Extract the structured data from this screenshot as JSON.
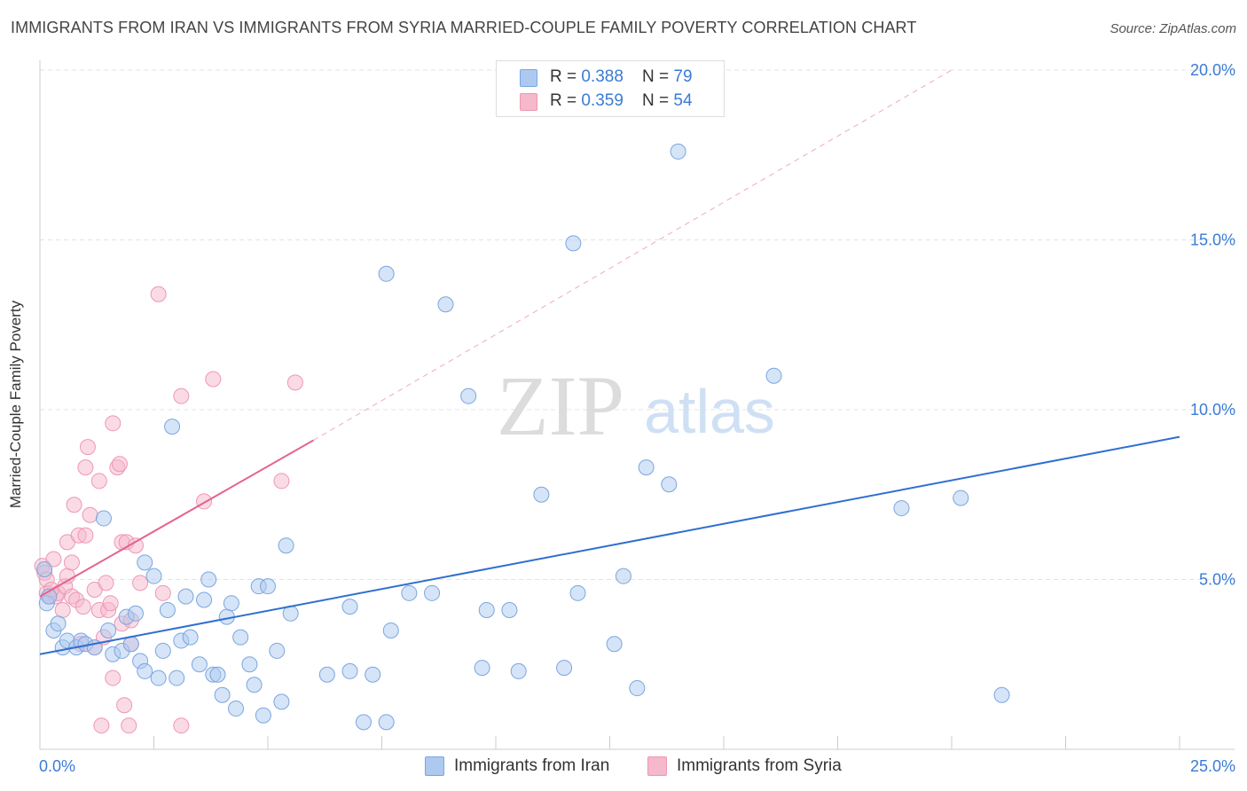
{
  "header": {
    "title": "IMMIGRANTS FROM IRAN VS IMMIGRANTS FROM SYRIA MARRIED-COUPLE FAMILY POVERTY CORRELATION CHART",
    "source": "Source: ZipAtlas.com"
  },
  "watermark": {
    "zip": "ZIP",
    "atlas": "atlas"
  },
  "legend": {
    "iran": {
      "r_label": "R = ",
      "r_value": "0.388",
      "n_label": "N = ",
      "n_value": "79"
    },
    "syria": {
      "r_label": "R = ",
      "r_value": "0.359",
      "n_label": "N = ",
      "n_value": "54"
    }
  },
  "colors": {
    "iran_fill": "#aec9f0",
    "iran_stroke": "#7aa6e0",
    "iran_line": "#2f6fd0",
    "syria_fill": "#f6b8cb",
    "syria_stroke": "#ee97b3",
    "syria_line": "#e4648f",
    "tick_label": "#3a7bd5",
    "grid": "#e3e3e3"
  },
  "chart_data": {
    "type": "scatter",
    "title": "IMMIGRANTS FROM IRAN VS IMMIGRANTS FROM SYRIA MARRIED-COUPLE FAMILY POVERTY CORRELATION CHART",
    "xlabel": "",
    "ylabel": "Married-Couple Family Poverty",
    "xlim": [
      0,
      25
    ],
    "ylim": [
      0,
      20
    ],
    "x_ticks": [
      0,
      2.5,
      5,
      7.5,
      10,
      12.5,
      15,
      17.5,
      20,
      22.5,
      25
    ],
    "x_tick_labels": [
      "0.0%",
      "25.0%"
    ],
    "y_ticks": [
      5,
      10,
      15,
      20
    ],
    "y_tick_labels": [
      "5.0%",
      "10.0%",
      "15.0%",
      "20.0%"
    ],
    "legend_position": "top-center",
    "series": [
      {
        "name": "Immigrants from Iran",
        "R": 0.388,
        "N": 79,
        "trend": {
          "x0": 0,
          "y0": 2.8,
          "x1": 25,
          "y1": 9.2
        },
        "points": [
          [
            0.1,
            5.3
          ],
          [
            0.15,
            4.3
          ],
          [
            0.3,
            3.5
          ],
          [
            0.4,
            3.7
          ],
          [
            0.5,
            3.0
          ],
          [
            0.6,
            3.2
          ],
          [
            0.8,
            3.0
          ],
          [
            0.9,
            3.2
          ],
          [
            1.0,
            3.1
          ],
          [
            1.2,
            3.0
          ],
          [
            1.4,
            6.8
          ],
          [
            1.5,
            3.5
          ],
          [
            1.6,
            2.8
          ],
          [
            1.8,
            2.9
          ],
          [
            1.9,
            3.9
          ],
          [
            2.0,
            3.1
          ],
          [
            2.1,
            4.0
          ],
          [
            2.2,
            2.6
          ],
          [
            2.3,
            2.3
          ],
          [
            2.3,
            5.5
          ],
          [
            2.5,
            5.1
          ],
          [
            2.6,
            2.1
          ],
          [
            2.7,
            2.9
          ],
          [
            2.8,
            4.1
          ],
          [
            2.9,
            9.5
          ],
          [
            3.0,
            2.1
          ],
          [
            3.1,
            3.2
          ],
          [
            3.2,
            4.5
          ],
          [
            3.3,
            3.3
          ],
          [
            3.5,
            2.5
          ],
          [
            3.6,
            4.4
          ],
          [
            3.7,
            5.0
          ],
          [
            3.8,
            2.2
          ],
          [
            3.9,
            2.2
          ],
          [
            4.0,
            1.6
          ],
          [
            4.1,
            3.9
          ],
          [
            4.2,
            4.3
          ],
          [
            4.3,
            1.2
          ],
          [
            4.4,
            3.3
          ],
          [
            4.6,
            2.5
          ],
          [
            4.7,
            1.9
          ],
          [
            4.8,
            4.8
          ],
          [
            4.9,
            1.0
          ],
          [
            5.0,
            4.8
          ],
          [
            5.2,
            2.9
          ],
          [
            5.3,
            1.4
          ],
          [
            5.4,
            6.0
          ],
          [
            5.5,
            4.0
          ],
          [
            6.3,
            2.2
          ],
          [
            6.8,
            4.2
          ],
          [
            6.8,
            2.3
          ],
          [
            7.1,
            0.8
          ],
          [
            7.3,
            2.2
          ],
          [
            7.6,
            0.8
          ],
          [
            7.6,
            14.0
          ],
          [
            7.7,
            3.5
          ],
          [
            8.1,
            4.6
          ],
          [
            8.6,
            4.6
          ],
          [
            8.9,
            13.1
          ],
          [
            9.4,
            10.4
          ],
          [
            9.7,
            2.4
          ],
          [
            9.8,
            4.1
          ],
          [
            10.3,
            4.1
          ],
          [
            10.5,
            2.3
          ],
          [
            11.0,
            7.5
          ],
          [
            11.5,
            2.4
          ],
          [
            11.7,
            14.9
          ],
          [
            11.8,
            4.6
          ],
          [
            12.6,
            3.1
          ],
          [
            12.8,
            5.1
          ],
          [
            13.1,
            1.8
          ],
          [
            13.3,
            8.3
          ],
          [
            13.8,
            7.8
          ],
          [
            14.0,
            17.6
          ],
          [
            16.1,
            11.0
          ],
          [
            18.9,
            7.1
          ],
          [
            20.2,
            7.4
          ],
          [
            21.1,
            1.6
          ],
          [
            0.2,
            4.5
          ]
        ]
      },
      {
        "name": "Immigrants from Syria",
        "R": 0.359,
        "N": 54,
        "trend": {
          "x0": 0,
          "y0": 4.5,
          "x1": 6.0,
          "y1": 9.1
        },
        "trend_extension": {
          "x0": 6.0,
          "y0": 9.1,
          "x1": 20.0,
          "y1": 20.0
        },
        "points": [
          [
            0.05,
            5.4
          ],
          [
            0.1,
            5.2
          ],
          [
            0.15,
            4.6
          ],
          [
            0.2,
            4.5
          ],
          [
            0.3,
            5.6
          ],
          [
            0.35,
            4.5
          ],
          [
            0.4,
            4.6
          ],
          [
            0.5,
            4.1
          ],
          [
            0.55,
            4.8
          ],
          [
            0.6,
            6.1
          ],
          [
            0.6,
            5.1
          ],
          [
            0.7,
            5.5
          ],
          [
            0.7,
            4.5
          ],
          [
            0.75,
            7.2
          ],
          [
            0.8,
            4.4
          ],
          [
            0.85,
            6.3
          ],
          [
            0.9,
            3.1
          ],
          [
            0.95,
            4.2
          ],
          [
            1.0,
            8.3
          ],
          [
            1.0,
            6.3
          ],
          [
            1.05,
            8.9
          ],
          [
            1.1,
            6.9
          ],
          [
            1.2,
            4.7
          ],
          [
            1.2,
            3.0
          ],
          [
            1.3,
            4.1
          ],
          [
            1.3,
            7.9
          ],
          [
            1.35,
            0.7
          ],
          [
            1.4,
            3.3
          ],
          [
            1.45,
            4.9
          ],
          [
            1.5,
            4.1
          ],
          [
            1.55,
            4.3
          ],
          [
            1.6,
            2.1
          ],
          [
            1.6,
            9.6
          ],
          [
            1.7,
            8.3
          ],
          [
            1.75,
            8.4
          ],
          [
            1.8,
            3.7
          ],
          [
            1.8,
            6.1
          ],
          [
            1.85,
            1.3
          ],
          [
            1.9,
            6.1
          ],
          [
            1.95,
            0.7
          ],
          [
            2.0,
            3.1
          ],
          [
            2.0,
            3.8
          ],
          [
            2.1,
            6.0
          ],
          [
            2.2,
            4.9
          ],
          [
            2.6,
            13.4
          ],
          [
            2.7,
            4.6
          ],
          [
            3.1,
            10.4
          ],
          [
            3.1,
            0.7
          ],
          [
            3.6,
            7.3
          ],
          [
            3.8,
            10.9
          ],
          [
            5.3,
            7.9
          ],
          [
            5.6,
            10.8
          ],
          [
            0.15,
            5.0
          ],
          [
            0.25,
            4.7
          ]
        ]
      }
    ]
  },
  "bottom_legend": {
    "iran": "Immigrants from Iran",
    "syria": "Immigrants from Syria"
  },
  "axis": {
    "x_min_label": "0.0%",
    "x_max_label": "25.0%",
    "y_label": "Married-Couple Family Poverty"
  }
}
